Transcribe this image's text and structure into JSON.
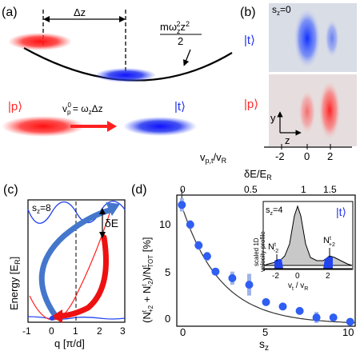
{
  "panels": {
    "a": {
      "label": "(a)",
      "delta_z": "Δz",
      "potential_num": "mω",
      "potential_sub": "z",
      "potential_sup": "2",
      "potential_tail": "z",
      "potential_tail_sup": "2",
      "potential_den": "2",
      "state_p": "|p⟩",
      "state_t": "|t⟩",
      "v_main": "v",
      "v_sub": "p",
      "v_sup": "0",
      "v_rhs": "= ω",
      "v_rhs_sub": "z",
      "v_rhs_tail": "Δz",
      "colors": {
        "red": "#ff2a2a",
        "blue": "#2233ee"
      }
    },
    "b": {
      "label": "(b)",
      "sz": "s",
      "sz_sub": "z",
      "sz_val": "=0",
      "state_t": "|t⟩",
      "state_p": "|p⟩",
      "axis_y": "y",
      "axis_z": "z",
      "vel_label": "v",
      "vel_sub": "p,t",
      "vel_den": "/v",
      "vel_den_sub": "R",
      "vel_ticks": [
        "-2",
        "0",
        "2"
      ]
    },
    "c": {
      "label": "(c)",
      "sz_label": "s",
      "sz_sub": "z",
      "sz_val": "=8",
      "ylabel": "Energy [E",
      "ylabel_sub": "R",
      "ylabel_tail": "]",
      "xlabel": "q [π/d]",
      "delta_e": "δE",
      "xticks": [
        "-1",
        "0",
        "1",
        "2",
        "3"
      ]
    },
    "d": {
      "label": "(d)",
      "top_axis_label": "δE/E",
      "top_axis_sub": "R",
      "top_ticks": [
        "0",
        "0.5",
        "1",
        "1.5"
      ],
      "xticks": [
        "0",
        "5",
        "10"
      ],
      "xlabel": "s",
      "xlabel_sub": "z",
      "ylabel": "(N",
      "yticks": [
        "0",
        "5",
        "10"
      ],
      "inset": {
        "sz": "s",
        "sz_sub": "z",
        "sz_val": "=4",
        "state": "|t⟩",
        "ylabel_1": "scaled 1D",
        "ylabel_2": "velocity profile",
        "xlabel": "v",
        "xlabel_sub": "t",
        "xlabel_den": " / v",
        "xlabel_den_sub": "R",
        "xticks": [
          "-2",
          "0",
          "2"
        ],
        "n_minus": "N",
        "n_minus_sup": "t",
        "n_minus_sub": "-2",
        "n_plus": "N",
        "n_plus_sup": "t",
        "n_plus_sub": "+2"
      }
    }
  },
  "chart_data": {
    "type": "scatter",
    "title": "",
    "xlabel": "s_z",
    "ylabel": "(N^t_{+2} + N^t_{-2})/N^t_{TOT} [%]",
    "xlim": [
      -0.3,
      10.3
    ],
    "ylim": [
      0,
      12
    ],
    "series": [
      {
        "points": [
          {
            "x": 0,
            "y": 11.1,
            "err": 0.6
          },
          {
            "x": 0.5,
            "y": 9.3,
            "err": 0.4
          },
          {
            "x": 1,
            "y": 7.4,
            "err": 0.4
          },
          {
            "x": 1.5,
            "y": 6.4,
            "err": 0.4
          },
          {
            "x": 2,
            "y": 5.0,
            "err": 0.3
          },
          {
            "x": 3,
            "y": 4.4,
            "err": 0.6
          },
          {
            "x": 4,
            "y": 3.8,
            "err": 1.0
          },
          {
            "x": 5,
            "y": 2.2,
            "err": 0.3
          },
          {
            "x": 6,
            "y": 1.8,
            "err": 0.3
          },
          {
            "x": 7,
            "y": 1.4,
            "err": 0.3
          },
          {
            "x": 8,
            "y": 0.8,
            "err": 0.5
          },
          {
            "x": 9,
            "y": 0.8,
            "err": 0.3
          },
          {
            "x": 10,
            "y": 0.4,
            "err": 0.2
          }
        ]
      }
    ],
    "fit_curve": {
      "type": "exponential",
      "y0": 11.0,
      "decay_sz": 2.3,
      "offset": 0.2
    },
    "top_axis": {
      "label": "δE/E_R",
      "range": [
        0,
        1.7
      ]
    }
  }
}
